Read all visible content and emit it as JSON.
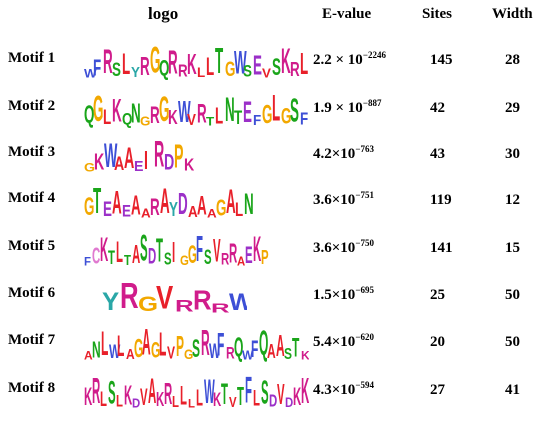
{
  "headers": {
    "logo": "logo",
    "evalue": "E-value",
    "sites": "Sites",
    "width": "Width"
  },
  "rows": [
    {
      "label": "Motif 1",
      "ev_base": "2.2 × 10",
      "ev_exp": "−2246",
      "sites": "145",
      "width": "28",
      "logo_text": "WFRSLYRGQRRKLLTGWSEVSKRL"
    },
    {
      "label": "Motif 2",
      "ev_base": "1.9 × 10",
      "ev_exp": "−887",
      "sites": "42",
      "width": "29",
      "logo_text": "QGLKQNGRGKWVRTLNTEFGLGSF"
    },
    {
      "label": "Motif 3",
      "ev_base": "4.2×10",
      "ev_exp": "−763",
      "sites": "43",
      "width": "30",
      "logo_text": "GKWAAEIRDPK"
    },
    {
      "label": "Motif 4",
      "ev_base": "3.6×10",
      "ev_exp": "−751",
      "sites": "119",
      "width": "12",
      "logo_text": "GTEAEAARAYDAAAGALN"
    },
    {
      "label": "Motif 5",
      "ev_base": "3.6×10",
      "ev_exp": "−750",
      "sites": "141",
      "width": "15",
      "logo_text": "FCKTLTASDTSIGGFSVRRAEKP"
    },
    {
      "label": "Motif 6",
      "ev_base": "1.5×10",
      "ev_exp": "−695",
      "sites": "25",
      "width": "50",
      "logo_text": "YRGVRRRW"
    },
    {
      "label": "Motif 7",
      "ev_base": "5.4×10",
      "ev_exp": "−620",
      "sites": "20",
      "width": "50",
      "logo_text": "ANLWLAGAGLVPGSRWFRQWFQAASTK"
    },
    {
      "label": "Motif 8",
      "ev_base": "4.3×10",
      "ev_exp": "−594",
      "sites": "27",
      "width": "41",
      "logo_text": "KRLSLKDVAKRLLLLWKTVTFLSDVDKK"
    }
  ]
}
